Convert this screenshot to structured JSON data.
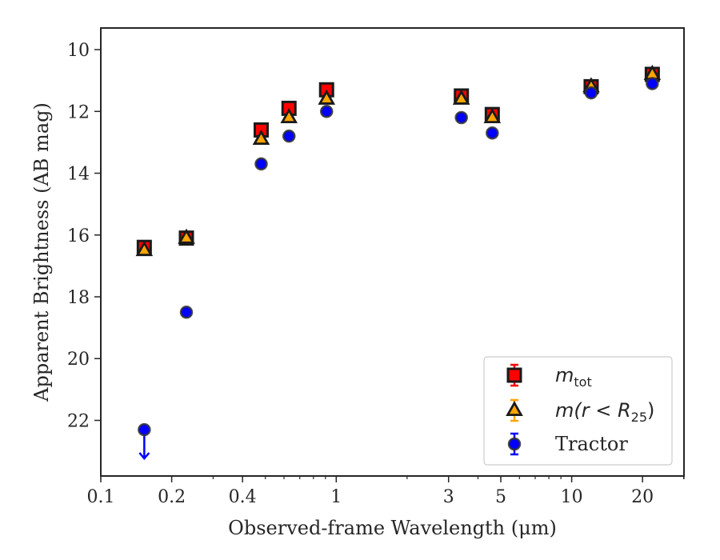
{
  "chart_data": {
    "type": "scatter",
    "xlabel": "Observed-frame Wavelength (μm)",
    "ylabel": "Apparent Brightness (AB mag)",
    "x_scale": "log",
    "xlim": [
      0.1,
      30
    ],
    "ylim": [
      23.8,
      9.3
    ],
    "y_inverted": true,
    "x_ticks": [
      0.1,
      0.2,
      0.4,
      1,
      3,
      5,
      10,
      20
    ],
    "x_tick_labels": [
      "0.1",
      "0.2",
      "0.4",
      "1",
      "3",
      "5",
      "10",
      "20"
    ],
    "y_ticks": [
      10,
      12,
      14,
      16,
      18,
      20,
      22
    ],
    "y_tick_labels": [
      "10",
      "12",
      "14",
      "16",
      "18",
      "20",
      "22"
    ],
    "grid": false,
    "legend_position": "bottom-right",
    "series": [
      {
        "name": "m_tot",
        "legend": {
          "main": "m",
          "sub": "tot",
          "rest": ""
        },
        "marker": "square",
        "color": "#ff0000",
        "edge_color": "#1a1a1a",
        "points": [
          {
            "x": 0.153,
            "y": 16.4
          },
          {
            "x": 0.231,
            "y": 16.1
          },
          {
            "x": 0.48,
            "y": 12.6
          },
          {
            "x": 0.63,
            "y": 11.9
          },
          {
            "x": 0.91,
            "y": 11.3
          },
          {
            "x": 3.4,
            "y": 11.5
          },
          {
            "x": 4.6,
            "y": 12.1
          },
          {
            "x": 12.1,
            "y": 11.2
          },
          {
            "x": 22,
            "y": 10.8
          }
        ]
      },
      {
        "name": "m(r<R_25)",
        "legend": {
          "main": "m(r < R",
          "sub": "25",
          "rest": ")"
        },
        "marker": "triangle",
        "color": "#ffa500",
        "edge_color": "#1a1a1a",
        "points": [
          {
            "x": 0.153,
            "y": 16.5
          },
          {
            "x": 0.231,
            "y": 16.1
          },
          {
            "x": 0.48,
            "y": 12.9
          },
          {
            "x": 0.63,
            "y": 12.2
          },
          {
            "x": 0.91,
            "y": 11.6
          },
          {
            "x": 3.4,
            "y": 11.6
          },
          {
            "x": 4.6,
            "y": 12.2
          },
          {
            "x": 12.1,
            "y": 11.2
          },
          {
            "x": 22,
            "y": 10.8
          }
        ]
      },
      {
        "name": "Tractor",
        "legend": {
          "main": "Tractor",
          "sub": "",
          "rest": ""
        },
        "marker": "circle",
        "color": "#0000ff",
        "edge_color": "#333333",
        "points": [
          {
            "x": 0.153,
            "y": 22.3,
            "upper_limit": true
          },
          {
            "x": 0.231,
            "y": 18.5
          },
          {
            "x": 0.48,
            "y": 13.7
          },
          {
            "x": 0.63,
            "y": 12.8
          },
          {
            "x": 0.91,
            "y": 12.0
          },
          {
            "x": 3.4,
            "y": 12.2
          },
          {
            "x": 4.6,
            "y": 12.7
          },
          {
            "x": 12.1,
            "y": 11.4
          },
          {
            "x": 22,
            "y": 11.1
          }
        ]
      }
    ]
  }
}
